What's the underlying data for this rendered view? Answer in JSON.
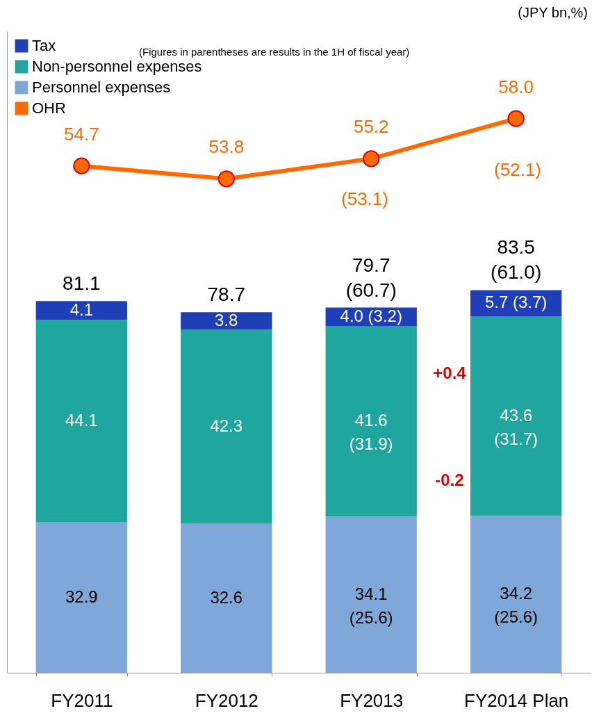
{
  "chart_data": {
    "type": "bar",
    "stacked": true,
    "categories": [
      "FY2011",
      "FY2012",
      "FY2013",
      "FY2014 Plan"
    ],
    "series": [
      {
        "name": "Personnel expenses",
        "color": "#7fa8d8",
        "values": [
          32.9,
          32.6,
          34.1,
          34.2
        ],
        "value_labels": [
          "32.9",
          "32.6",
          "34.1\n(25.6)",
          "34.2\n(25.6)"
        ]
      },
      {
        "name": "Non-personnel expenses",
        "color": "#1fa79f",
        "values": [
          44.1,
          42.3,
          41.6,
          43.6
        ],
        "value_labels": [
          "44.1",
          "42.3",
          "41.6\n(31.9)",
          "43.6\n(31.7)"
        ]
      },
      {
        "name": "Tax",
        "color": "#1e3fb8",
        "values": [
          4.1,
          3.8,
          4.0,
          5.7
        ],
        "value_labels": [
          "4.1",
          "3.8",
          "4.0 (3.2)",
          "5.7 (3.7)"
        ]
      },
      {
        "name": "OHR",
        "type": "line",
        "axis": "y2",
        "color": "#ff6a00",
        "values": [
          54.7,
          53.8,
          55.2,
          58.0
        ],
        "value_labels": [
          "54.7",
          "53.8",
          "55.2",
          "58.0"
        ]
      }
    ],
    "totals": [
      "81.1",
      "78.7",
      "79.7\n(60.7)",
      "83.5\n(61.0)"
    ],
    "ylim": [
      0,
      140
    ],
    "annotations": [
      "(JPY bn,%)",
      "(Figures in parentheses are results in the 1H of fiscal year)",
      "+0.4",
      "-0.2",
      "(53.1)",
      "(52.1)"
    ],
    "legend": "top left",
    "marker": "circle",
    "line_style": "solid",
    "tick_labels": "x"
  }
}
